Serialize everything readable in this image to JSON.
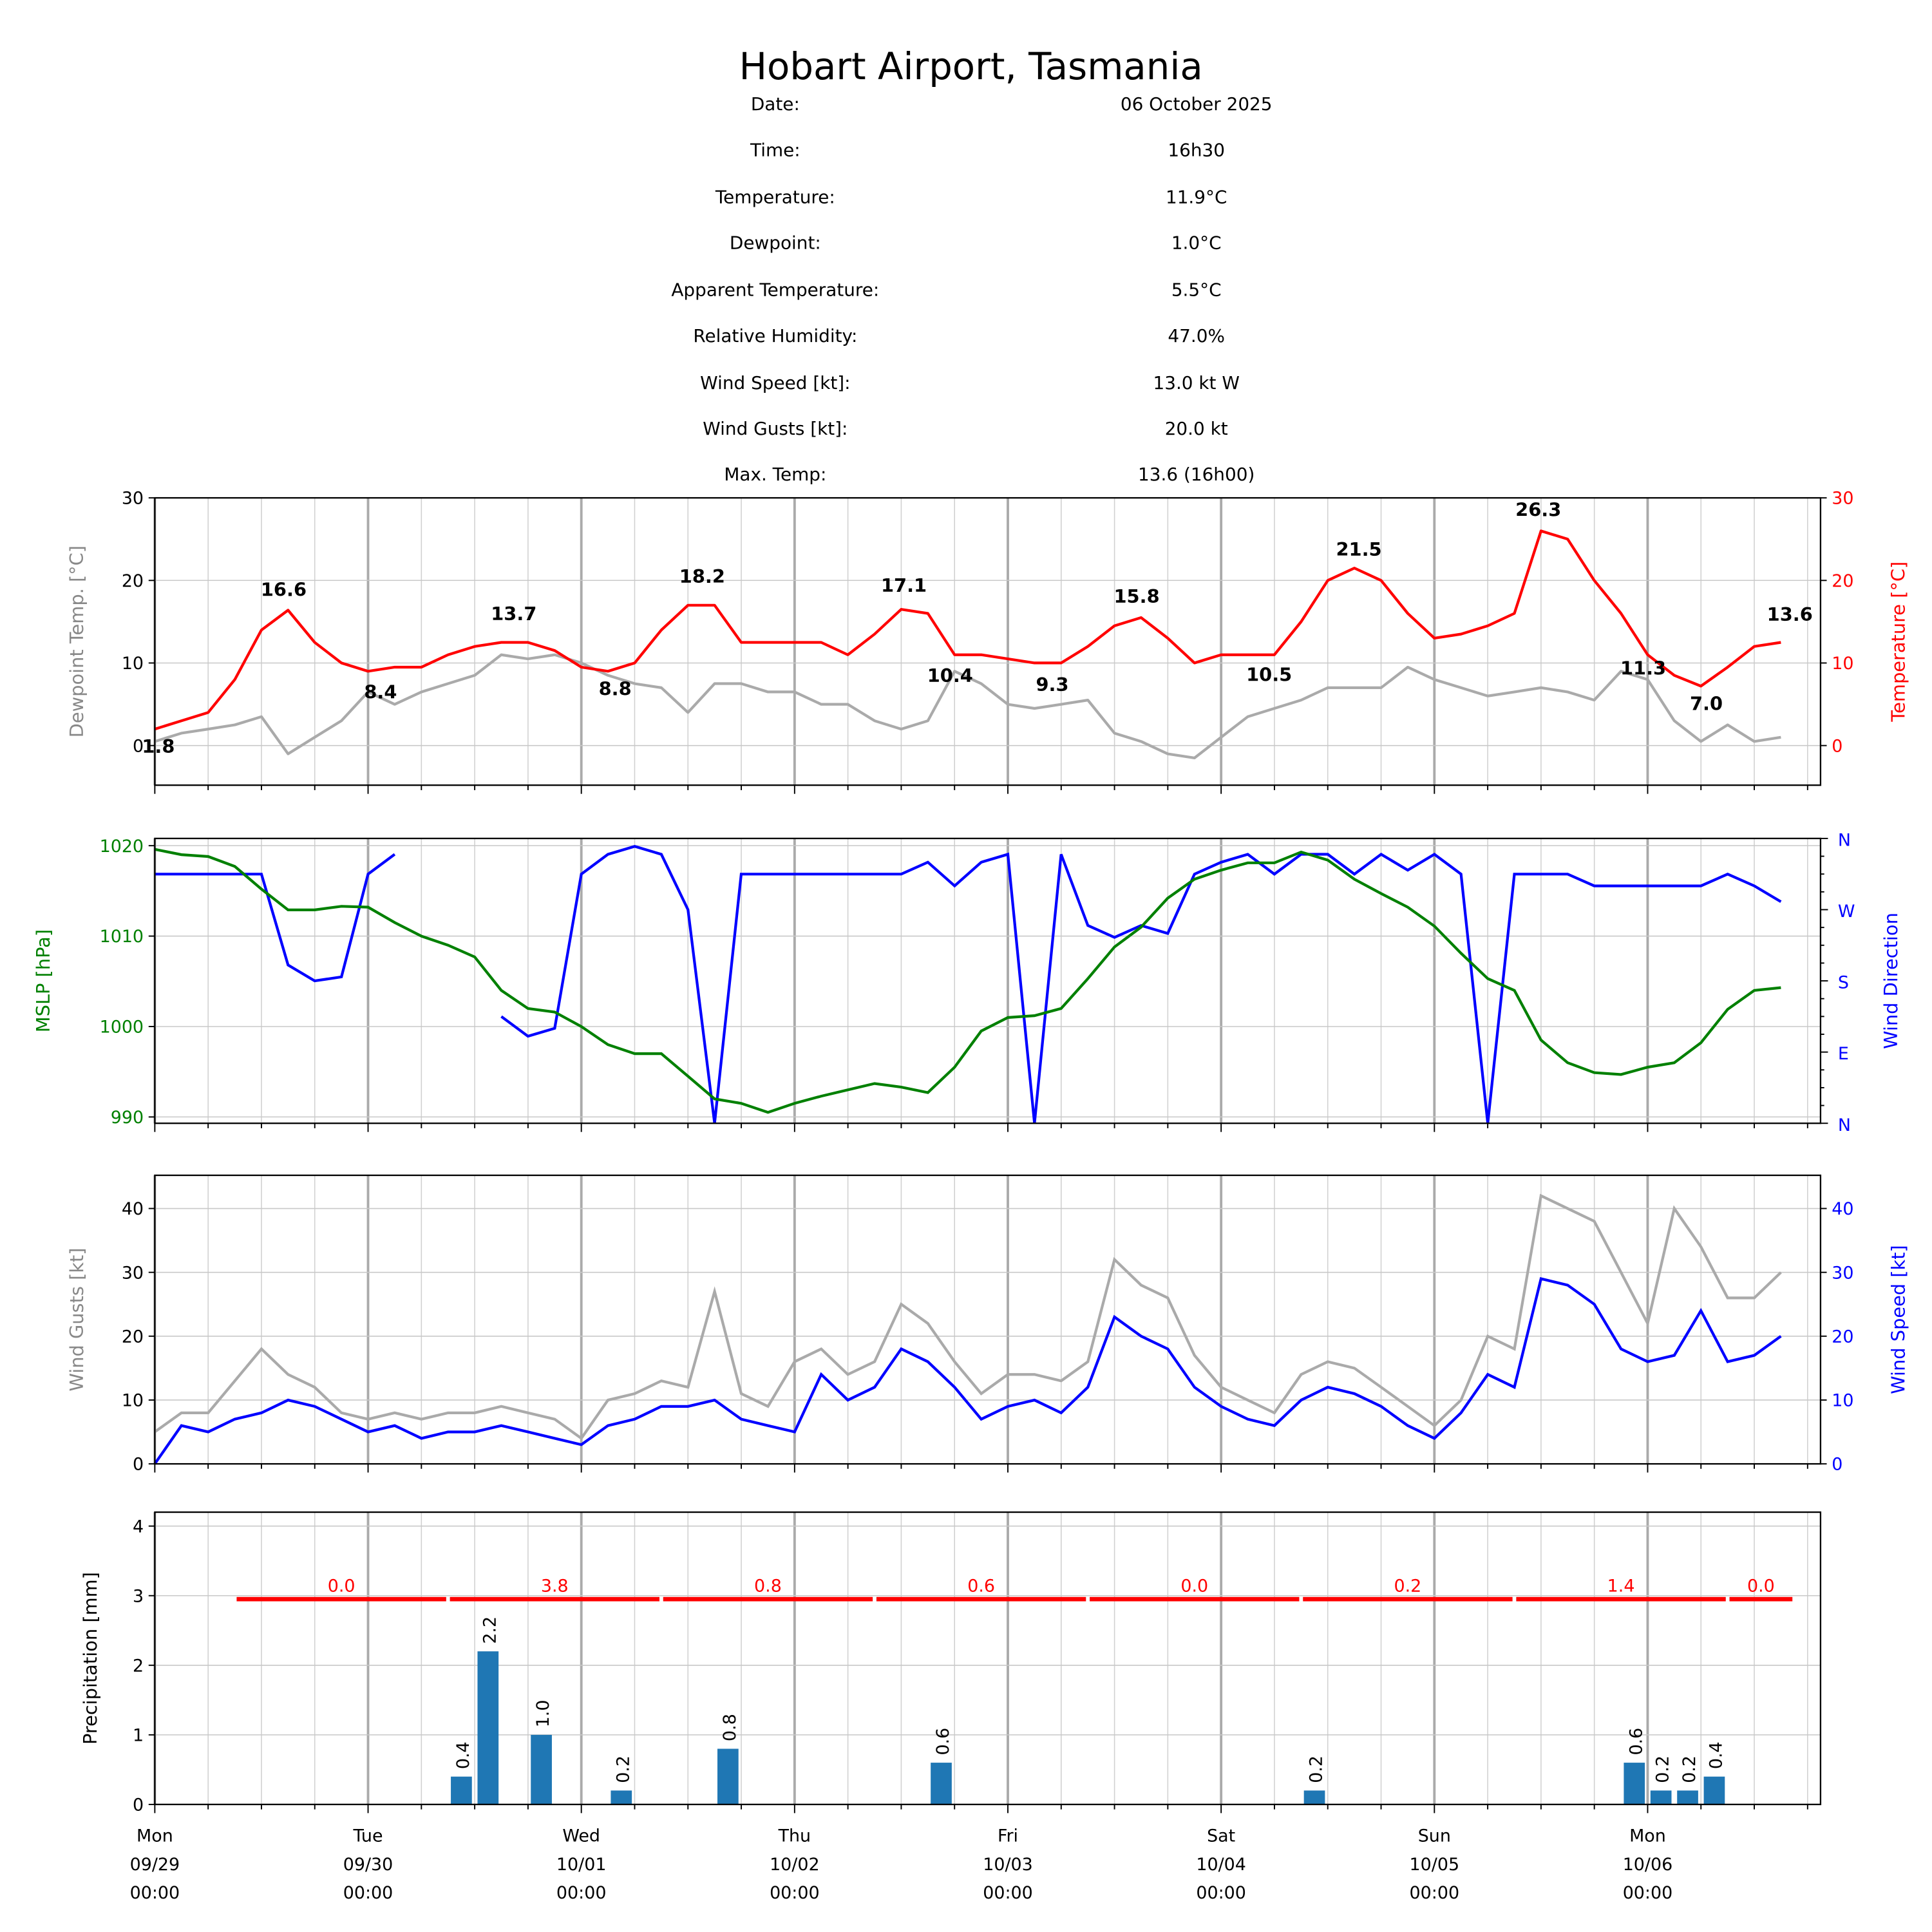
{
  "header": {
    "title": "Hobart Airport, Tasmania",
    "rows": [
      {
        "label": "Date:",
        "value": "06 October 2025"
      },
      {
        "label": "Time:",
        "value": "16h30"
      },
      {
        "label": "Temperature:",
        "value": "11.9°C"
      },
      {
        "label": "Dewpoint:",
        "value": "1.0°C"
      },
      {
        "label": "Apparent Temperature:",
        "value": "5.5°C"
      },
      {
        "label": "Relative Humidity:",
        "value": "47.0%"
      },
      {
        "label": "Wind Speed [kt]:",
        "value": "13.0 kt W"
      },
      {
        "label": "Wind Gusts [kt]:",
        "value": "20.0 kt"
      },
      {
        "label": "Max. Temp:",
        "value": "13.6 (16h00)"
      }
    ]
  },
  "colors": {
    "temperature": "#ff0000",
    "dewpoint": "#aaaaaa",
    "mslp": "#008000",
    "wind_dir": "#0000ff",
    "gust": "#aaaaaa",
    "speed": "#0000ff",
    "precip_bar": "#1f77b4",
    "daily_total": "#ff0000"
  },
  "chart_data": [
    {
      "type": "line",
      "x_unit": "hours since Mon 09/29 00:00",
      "step_hours": 3,
      "xlim_hours": [
        0,
        187.5
      ],
      "x_ticks": [
        {
          "day": "Mon",
          "date": "09/29",
          "time": "00:00"
        },
        {
          "day": "Tue",
          "date": "09/30",
          "time": "00:00"
        },
        {
          "day": "Wed",
          "date": "10/01",
          "time": "00:00"
        },
        {
          "day": "Thu",
          "date": "10/02",
          "time": "00:00"
        },
        {
          "day": "Fri",
          "date": "10/03",
          "time": "00:00"
        },
        {
          "day": "Sat",
          "date": "10/04",
          "time": "00:00"
        },
        {
          "day": "Sun",
          "date": "10/05",
          "time": "00:00"
        },
        {
          "day": "Mon",
          "date": "10/06",
          "time": "00:00"
        }
      ],
      "left_label": "Dewpoint Temp. [°C]",
      "right_label": "Temperature [°C]",
      "ylim": [
        -4.8,
        30
      ],
      "yticks": [
        "0",
        "10",
        "20",
        "30"
      ],
      "series": [
        {
          "name": "Temperature",
          "axis": "right",
          "values": [
            2,
            3,
            4,
            8,
            14,
            16.4,
            12.5,
            10,
            9,
            9.5,
            9.5,
            11,
            12,
            12.5,
            12.5,
            11.5,
            9.5,
            9,
            10,
            14,
            17,
            17,
            12.5,
            12.5,
            12.5,
            12.5,
            11,
            13.5,
            16.5,
            16,
            11,
            11,
            10.5,
            10,
            10,
            12,
            14.5,
            15.5,
            13,
            10,
            11,
            11,
            11,
            15,
            20,
            21.5,
            20,
            16,
            13,
            13.5,
            14.5,
            16,
            26,
            25,
            20,
            16,
            11,
            8.5,
            7.2,
            9.5,
            12,
            12.5
          ]
        },
        {
          "name": "Dewpoint",
          "axis": "left",
          "values": [
            0.5,
            1.5,
            2,
            2.5,
            3.5,
            -1,
            1,
            3,
            6.5,
            5,
            6.5,
            7.5,
            8.5,
            11,
            10.5,
            11,
            10,
            8.5,
            7.5,
            7,
            4,
            7.5,
            7.5,
            6.5,
            6.5,
            5,
            5,
            3,
            2,
            3,
            9,
            7.5,
            5,
            4.5,
            5,
            5.5,
            1.5,
            0.5,
            -1,
            -1.5,
            1,
            3.5,
            4.5,
            5.5,
            7,
            7,
            7,
            9.5,
            8,
            7,
            6,
            6.5,
            7,
            6.5,
            5.5,
            9,
            8,
            3,
            0.5,
            2.5,
            0.5,
            1
          ]
        }
      ],
      "annotations": [
        {
          "text": "1.8",
          "hour": 0.4,
          "value": 1.8,
          "kind": "min"
        },
        {
          "text": "16.6",
          "hour": 14.5,
          "value": 16.6,
          "kind": "max"
        },
        {
          "text": "8.4",
          "hour": 25.4,
          "value": 8.4,
          "kind": "min"
        },
        {
          "text": "13.7",
          "hour": 40.4,
          "value": 13.7,
          "kind": "max"
        },
        {
          "text": "8.8",
          "hour": 51.8,
          "value": 8.8,
          "kind": "min"
        },
        {
          "text": "18.2",
          "hour": 61.6,
          "value": 18.2,
          "kind": "max"
        },
        {
          "text": "17.1",
          "hour": 84.3,
          "value": 17.1,
          "kind": "max"
        },
        {
          "text": "10.4",
          "hour": 89.5,
          "value": 10.4,
          "kind": "min"
        },
        {
          "text": "9.3",
          "hour": 101,
          "value": 9.3,
          "kind": "min"
        },
        {
          "text": "15.8",
          "hour": 110.5,
          "value": 15.8,
          "kind": "max"
        },
        {
          "text": "10.5",
          "hour": 125.4,
          "value": 10.5,
          "kind": "min"
        },
        {
          "text": "21.5",
          "hour": 135.5,
          "value": 21.5,
          "kind": "max"
        },
        {
          "text": "26.3",
          "hour": 155.7,
          "value": 26.3,
          "kind": "max"
        },
        {
          "text": "11.3",
          "hour": 167.5,
          "value": 11.3,
          "kind": "min"
        },
        {
          "text": "7.0",
          "hour": 174.6,
          "value": 7.0,
          "kind": "min"
        },
        {
          "text": "13.6",
          "hour": 184,
          "value": 13.6,
          "kind": "max"
        }
      ]
    },
    {
      "type": "line",
      "step_hours": 3,
      "left_label": "MSLP [hPa]",
      "right_label": "Wind Direction",
      "ylim": [
        989.3,
        1020.8
      ],
      "yticks": [
        "990",
        "1000",
        "1010",
        "1020"
      ],
      "right_ylim": [
        0,
        360
      ],
      "right_ticks": [
        {
          "label": "N",
          "deg": 0
        },
        {
          "label": "E",
          "deg": 90
        },
        {
          "label": "S",
          "deg": 180
        },
        {
          "label": "W",
          "deg": 270
        },
        {
          "label": "N",
          "deg": 360
        }
      ],
      "series": [
        {
          "name": "MSLP",
          "axis": "left",
          "values": [
            1019.6,
            1019,
            1018.8,
            1017.7,
            1015.2,
            1012.9,
            1012.9,
            1013.3,
            1013.2,
            1011.5,
            1010,
            1009,
            1007.7,
            1004,
            1002,
            1001.6,
            1000,
            998,
            997,
            997,
            994.5,
            992,
            991.5,
            990.5,
            991.5,
            992.3,
            993,
            993.7,
            993.3,
            992.7,
            995.5,
            999.5,
            1001,
            1001.2,
            1002,
            1005.3,
            1008.8,
            1011,
            1014.2,
            1016.3,
            1017.3,
            1018.1,
            1018.1,
            1019.3,
            1018.4,
            1016.3,
            1014.7,
            1013.2,
            1011.1,
            1008.1,
            1005.3,
            1004,
            998.5,
            996,
            994.9,
            994.7,
            995.5,
            996,
            998.2,
            1001.9,
            1004,
            1004.3
          ]
        },
        {
          "name": "Wind Direction",
          "axis": "right",
          "values": [
            315,
            315,
            315,
            315,
            315,
            200,
            180,
            185,
            315,
            340,
            null,
            315,
            null,
            135,
            110,
            120,
            315,
            340,
            350,
            340,
            270,
            0,
            315,
            315,
            315,
            315,
            315,
            315,
            315,
            330,
            300,
            330,
            340,
            0,
            340,
            250,
            235,
            250,
            240,
            315,
            330,
            340,
            315,
            340,
            340,
            315,
            340,
            320,
            340,
            315,
            0,
            315,
            315,
            315,
            300,
            300,
            300,
            300,
            300,
            315,
            300,
            280
          ]
        }
      ]
    },
    {
      "type": "line",
      "step_hours": 3,
      "left_label": "Wind Gusts [kt]",
      "right_label": "Wind Speed [kt]",
      "ylim": [
        0,
        45.2
      ],
      "yticks": [
        "0",
        "10",
        "20",
        "30",
        "40"
      ],
      "series": [
        {
          "name": "Wind Gusts",
          "axis": "left",
          "values": [
            5,
            8,
            8,
            13,
            18,
            14,
            12,
            8,
            7,
            8,
            7,
            8,
            8,
            9,
            8,
            7,
            4,
            10,
            11,
            13,
            12,
            27,
            11,
            9,
            16,
            18,
            14,
            16,
            25,
            22,
            16,
            11,
            14,
            14,
            13,
            16,
            32,
            28,
            26,
            17,
            12,
            10,
            8,
            14,
            16,
            15,
            12,
            9,
            6,
            10,
            20,
            18,
            42,
            40,
            38,
            30,
            22,
            40,
            34,
            26,
            26,
            30
          ]
        },
        {
          "name": "Wind Speed",
          "axis": "right",
          "values": [
            0,
            6,
            5,
            7,
            8,
            10,
            9,
            7,
            5,
            6,
            4,
            5,
            5,
            6,
            5,
            4,
            3,
            6,
            7,
            9,
            9,
            10,
            7,
            6,
            5,
            14,
            10,
            12,
            18,
            16,
            12,
            7,
            9,
            10,
            8,
            12,
            23,
            20,
            18,
            12,
            9,
            7,
            6,
            10,
            12,
            11,
            9,
            6,
            4,
            8,
            14,
            12,
            29,
            28,
            25,
            18,
            16,
            17,
            24,
            16,
            17,
            20
          ]
        }
      ]
    },
    {
      "type": "bar",
      "left_label": "Precipitation [mm]",
      "ylim": [
        0,
        4.2
      ],
      "yticks": [
        "0",
        "1",
        "2",
        "3",
        "4"
      ],
      "bars": [
        {
          "hour": 34.5,
          "value": 0.4,
          "label": "0.4"
        },
        {
          "hour": 37.5,
          "value": 2.2,
          "label": "2.2"
        },
        {
          "hour": 43.5,
          "value": 1.0,
          "label": "1.0"
        },
        {
          "hour": 52.5,
          "value": 0.2,
          "label": "0.2"
        },
        {
          "hour": 64.5,
          "value": 0.8,
          "label": "0.8"
        },
        {
          "hour": 88.5,
          "value": 0.6,
          "label": "0.6"
        },
        {
          "hour": 130.5,
          "value": 0.2,
          "label": "0.2"
        },
        {
          "hour": 166.5,
          "value": 0.6,
          "label": "0.6"
        },
        {
          "hour": 169.5,
          "value": 0.2,
          "label": "0.2"
        },
        {
          "hour": 172.5,
          "value": 0.2,
          "label": "0.2"
        },
        {
          "hour": 175.5,
          "value": 0.4,
          "label": "0.4"
        }
      ],
      "daily_totals_level": 2.95,
      "daily_totals": [
        {
          "start_hour": 9,
          "end_hour": 33,
          "label": "0.0"
        },
        {
          "start_hour": 33,
          "end_hour": 57,
          "label": "3.8"
        },
        {
          "start_hour": 57,
          "end_hour": 81,
          "label": "0.8"
        },
        {
          "start_hour": 81,
          "end_hour": 105,
          "label": "0.6"
        },
        {
          "start_hour": 105,
          "end_hour": 129,
          "label": "0.0"
        },
        {
          "start_hour": 129,
          "end_hour": 153,
          "label": "0.2"
        },
        {
          "start_hour": 153,
          "end_hour": 177,
          "label": "1.4"
        },
        {
          "start_hour": 177,
          "end_hour": 184.5,
          "label": "0.0"
        }
      ]
    }
  ]
}
